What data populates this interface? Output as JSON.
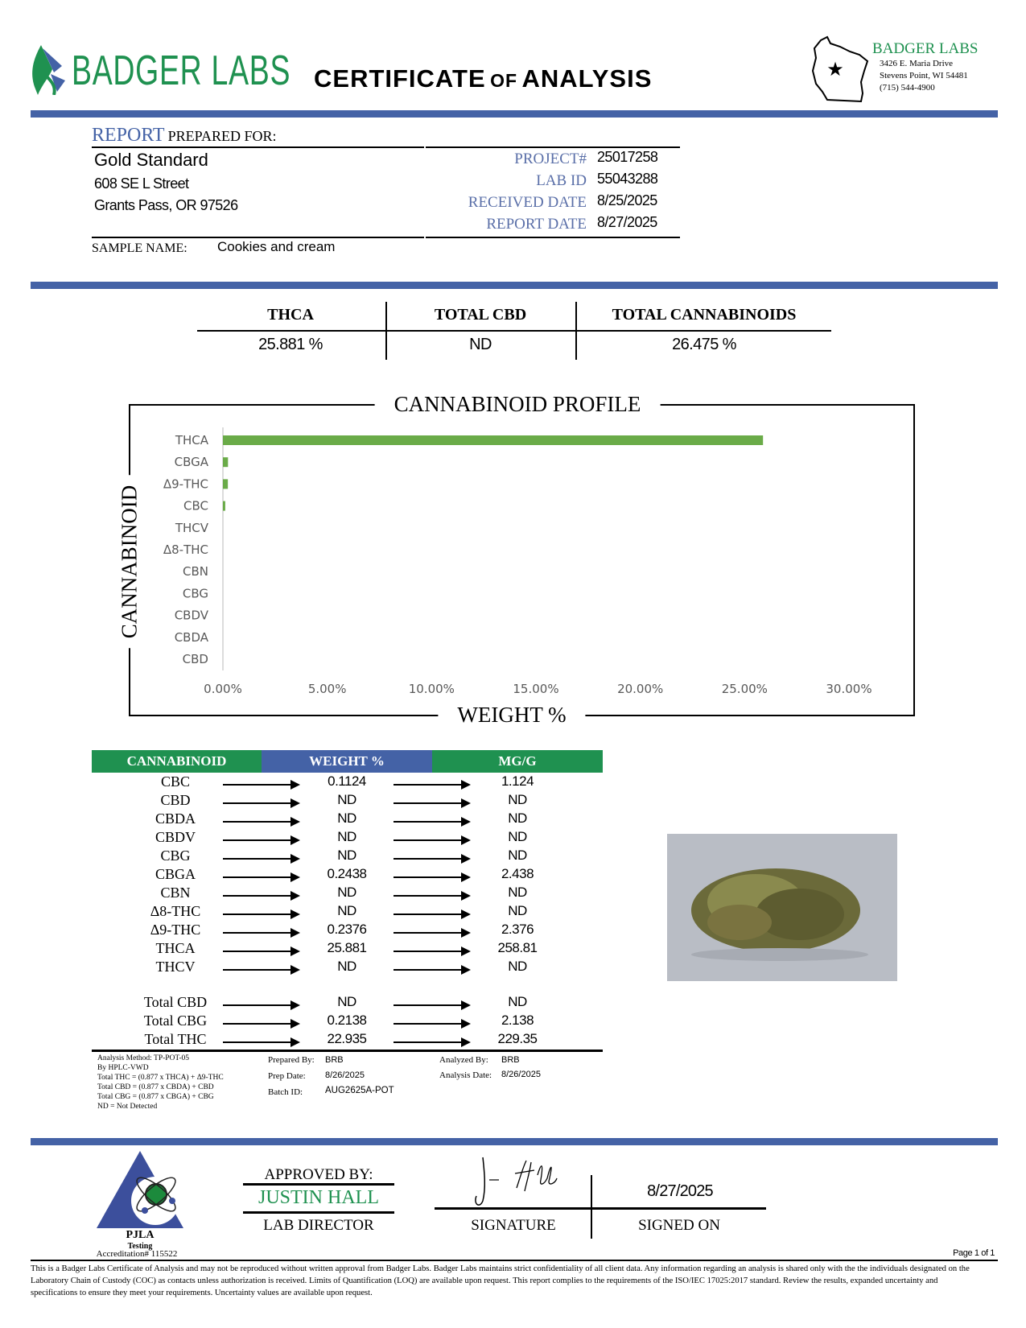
{
  "header": {
    "logo_text": "BADGER LABS",
    "title_main1": "CERTIFICATE",
    "title_of": "OF",
    "title_main2": "ANALYSIS",
    "lab_name": "BADGER LABS",
    "lab_address1": "3426 E. Maria Drive",
    "lab_address2": "Stevens Point, WI 54481",
    "lab_phone": "(715) 544-4900"
  },
  "colors": {
    "brand_green": "#1f9150",
    "brand_blue": "#4462a6",
    "chart_bar": "#6aab48"
  },
  "client": {
    "report_label": "REPORT",
    "prepared_for_label": "PREPARED FOR:",
    "name": "Gold Standard",
    "address1": "608 SE L Street",
    "address2": "Grants Pass, OR 97526",
    "sample_name_label": "SAMPLE NAME:",
    "sample_name": "Cookies and cream"
  },
  "report_info": [
    {
      "label": "PROJECT#",
      "value": "25017258"
    },
    {
      "label": "LAB ID",
      "value": "55043288"
    },
    {
      "label": "RECEIVED DATE",
      "value": "8/25/2025"
    },
    {
      "label": "REPORT DATE",
      "value": "8/27/2025"
    }
  ],
  "summary": [
    {
      "label": "THCA",
      "value": "25.881 %"
    },
    {
      "label": "TOTAL CBD",
      "value": "ND"
    },
    {
      "label": "TOTAL CANNABINOIDS",
      "value": "26.475 %"
    }
  ],
  "chart_data": {
    "type": "bar",
    "orientation": "horizontal",
    "title": "CANNABINOID PROFILE",
    "xlabel": "WEIGHT %",
    "ylabel": "CANNABINOID",
    "categories": [
      "THCA",
      "CBGA",
      "Δ9-THC",
      "CBC",
      "THCV",
      "Δ8-THC",
      "CBN",
      "CBG",
      "CBDV",
      "CBDA",
      "CBD"
    ],
    "values": [
      25.881,
      0.2438,
      0.2376,
      0.1124,
      0,
      0,
      0,
      0,
      0,
      0,
      0
    ],
    "xlim": [
      0,
      30
    ],
    "xticks": [
      "0.00%",
      "5.00%",
      "10.00%",
      "15.00%",
      "20.00%",
      "25.00%",
      "30.00%"
    ],
    "grid": false
  },
  "results": {
    "headers": [
      "CANNABINOID",
      "WEIGHT %",
      "MG/G"
    ],
    "rows": [
      {
        "name": "CBC",
        "weight": "0.1124",
        "mg": "1.124"
      },
      {
        "name": "CBD",
        "weight": "ND",
        "mg": "ND"
      },
      {
        "name": "CBDA",
        "weight": "ND",
        "mg": "ND"
      },
      {
        "name": "CBDV",
        "weight": "ND",
        "mg": "ND"
      },
      {
        "name": "CBG",
        "weight": "ND",
        "mg": "ND"
      },
      {
        "name": "CBGA",
        "weight": "0.2438",
        "mg": "2.438"
      },
      {
        "name": "CBN",
        "weight": "ND",
        "mg": "ND"
      },
      {
        "name": "Δ8-THC",
        "weight": "ND",
        "mg": "ND"
      },
      {
        "name": "Δ9-THC",
        "weight": "0.2376",
        "mg": "2.376"
      },
      {
        "name": "THCA",
        "weight": "25.881",
        "mg": "258.81"
      },
      {
        "name": "THCV",
        "weight": "ND",
        "mg": "ND"
      }
    ],
    "totals": [
      {
        "name": "Total CBD",
        "weight": "ND",
        "mg": "ND"
      },
      {
        "name": "Total CBG",
        "weight": "0.2138",
        "mg": "2.138"
      },
      {
        "name": "Total THC",
        "weight": "22.935",
        "mg": "229.35"
      }
    ]
  },
  "notes": [
    "Analysis Method: TP-POT-05",
    "By HPLC-VWD",
    "Total THC = (0.877 x  THCA) + Δ9-THC",
    "Total CBD = (0.877 x  CBDA) + CBD",
    "Total CBG = (0.877 x  CBGA) + CBG",
    "ND = Not Detected"
  ],
  "prep": {
    "prepared_by_label": "Prepared By:",
    "prepared_by": "BRB",
    "prep_date_label": "Prep Date:",
    "prep_date": "8/26/2025",
    "batch_label": "Batch ID:",
    "batch": "AUG2625A-POT",
    "analyzed_by_label": "Analyzed By:",
    "analyzed_by": "BRB",
    "analysis_date_label": "Analysis Date:",
    "analysis_date": "8/26/2025"
  },
  "footer": {
    "pjla": "PJLA",
    "testing": "Testing",
    "accreditation": "Accreditation# 115522",
    "approved_by_label": "APPROVED BY:",
    "approver": "JUSTIN HALL",
    "approver_title": "LAB DIRECTOR",
    "signature_label": "SIGNATURE",
    "signed_on_label": "SIGNED ON",
    "signed_on": "8/27/2025",
    "signature_text": "J Hall",
    "page": "Page 1 of 1",
    "disclaimer": "This is a Badger Labs Certificate of Analysis and may not be reproduced without written approval from Badger Labs. Badger Labs maintains strict confidentiality of all client data. Any information regarding an analysis is shared only with the the individuals designated on the Laboratory Chain of Custody (COC) as contacts unless authorization is received. Limits of Quantification (LOQ) are available upon request. This report complies to the requirements of the ISO/IEC 17025:2017 standard. Review the results, expanded uncertainty and specifications to ensure they meet your requirements. Uncertainty values are available upon request."
  }
}
